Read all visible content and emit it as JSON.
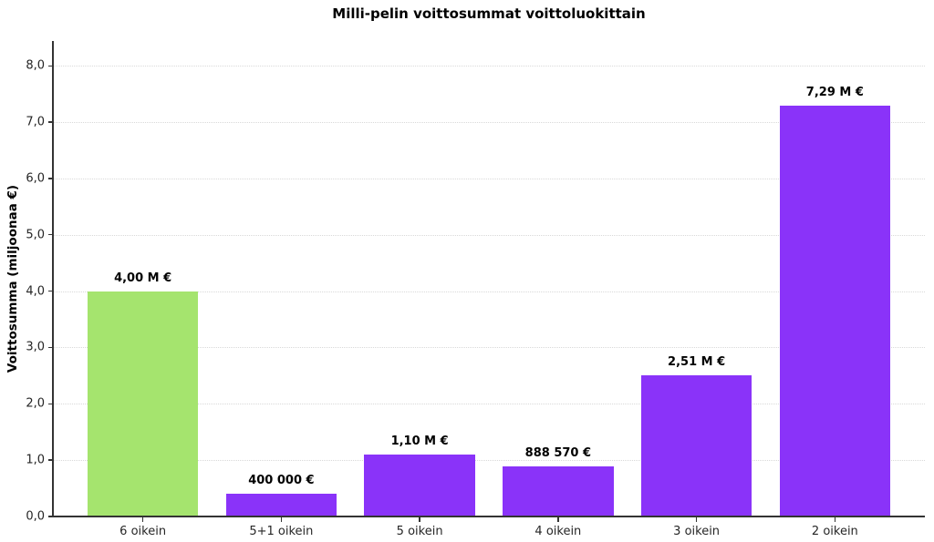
{
  "chart_data": {
    "type": "bar",
    "title": "Milli-pelin voittosummat voittoluokittain",
    "ylabel": "Voittosumma (miljoonaa €)",
    "xlabel": "",
    "categories": [
      "6 oikein",
      "5+1 oikein",
      "5 oikein",
      "4 oikein",
      "3 oikein",
      "2 oikein"
    ],
    "values": [
      4.0,
      0.4,
      1.1,
      0.88857,
      2.51,
      7.29
    ],
    "bar_labels": [
      "4,00 M €",
      "400 000 €",
      "1,10 M €",
      "888 570 €",
      "2,51 M €",
      "7,29 M €"
    ],
    "bar_colors": [
      "#a5e46e",
      "#8a33f9",
      "#8a33f9",
      "#8a33f9",
      "#8a33f9",
      "#8a33f9"
    ],
    "ylim": [
      0,
      8.44
    ],
    "yticks": [
      0,
      1,
      2,
      3,
      4,
      5,
      6,
      7,
      8
    ],
    "ytick_labels": [
      "0,0",
      "1,0",
      "2,0",
      "3,0",
      "4,0",
      "5,0",
      "6,0",
      "7,0",
      "8,0"
    ],
    "grid": "horizontal-dotted",
    "legend": "none",
    "bar_slot_padding": 0.65,
    "bar_width_fraction": 0.8,
    "accent_colors": {
      "highlight_green": "#a5e46e",
      "primary_purple": "#8a33f9",
      "grid_gray": "#d9d9d9",
      "spine_gray": "#333333"
    }
  }
}
